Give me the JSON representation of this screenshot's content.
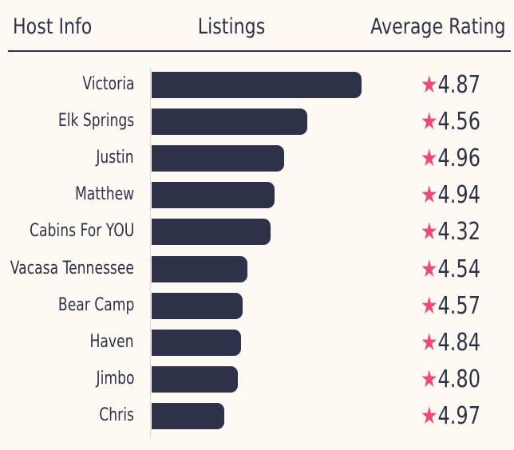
{
  "header": {
    "host_info": "Host Info",
    "listings": "Listings",
    "average_rating": "Average Rating"
  },
  "colors": {
    "bar": "#2e3248",
    "star": "#ed4a7b",
    "background": "#fef9f2"
  },
  "chart_data": {
    "type": "bar",
    "orientation": "horizontal",
    "categories": [
      "Victoria",
      "Elk Springs",
      "Justin",
      "Matthew",
      "Cabins For YOU",
      "Vacasa Tennessee",
      "Bear Camp",
      "Haven",
      "Jimbo",
      "Chris"
    ],
    "values": [
      263,
      195,
      166,
      154,
      149,
      120,
      114,
      112,
      108,
      91
    ],
    "ratings": [
      "4.87",
      "4.56",
      "4.96",
      "4.94",
      "4.32",
      "4.54",
      "4.57",
      "4.84",
      "4.80",
      "4.97"
    ],
    "star_icon": "star-icon",
    "xlim": [
      0,
      263
    ]
  }
}
